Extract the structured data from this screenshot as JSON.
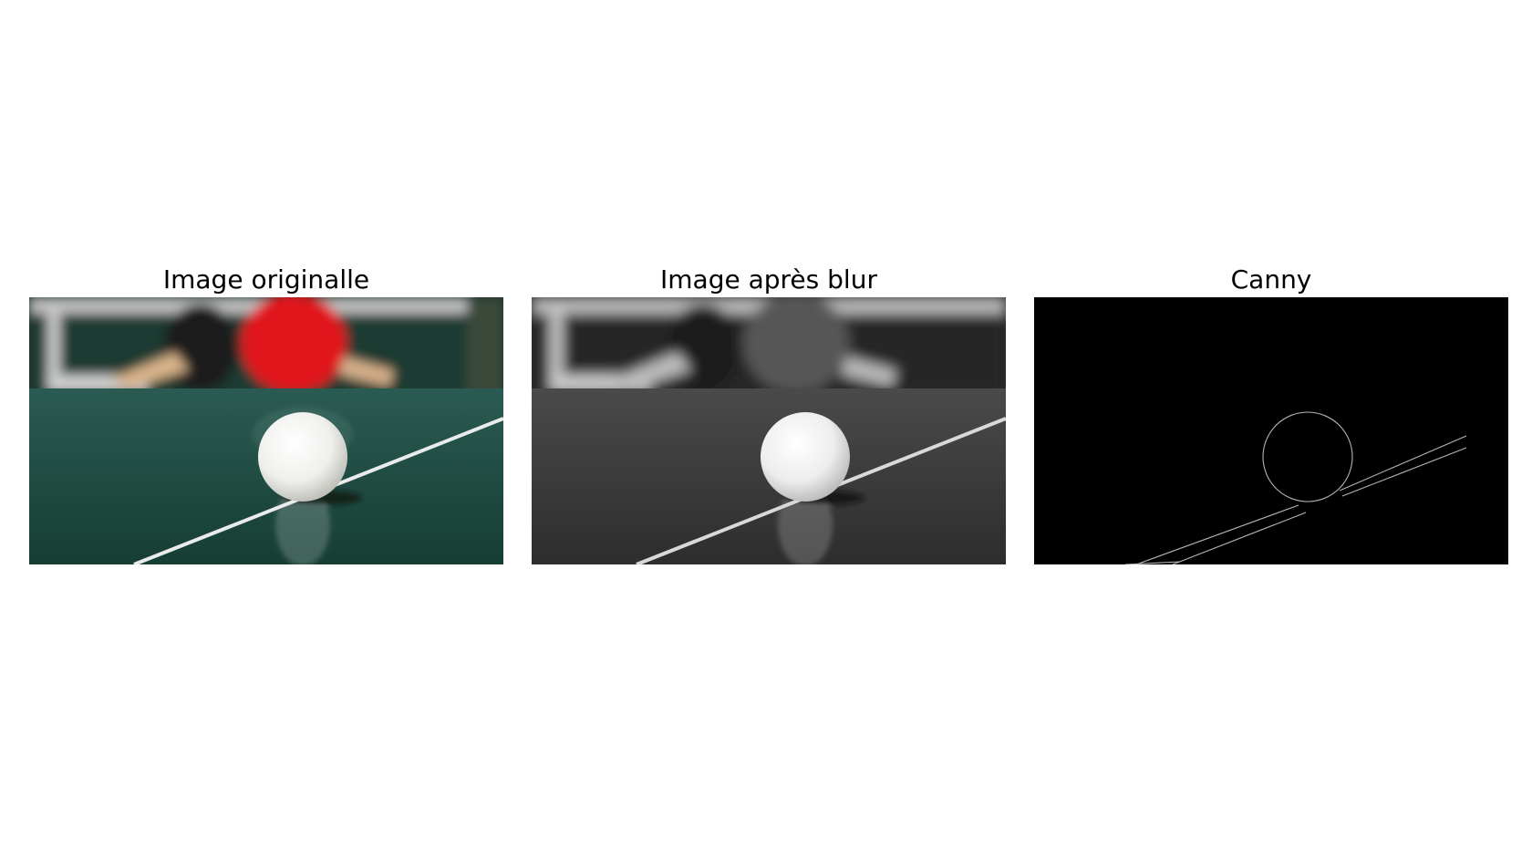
{
  "figure": {
    "panels": [
      {
        "title": "Image originalle",
        "kind": "original-color"
      },
      {
        "title": "Image après blur",
        "kind": "grayscale-blur"
      },
      {
        "title": "Canny",
        "kind": "canny-edges"
      }
    ]
  },
  "colors": {
    "background": "#ffffff",
    "table_green": "#1f4b40",
    "paddle_red": "#d8101b",
    "line_white": "#f2f2f2",
    "canny_bg": "#000000",
    "canny_edges": "#bbbbbb"
  }
}
